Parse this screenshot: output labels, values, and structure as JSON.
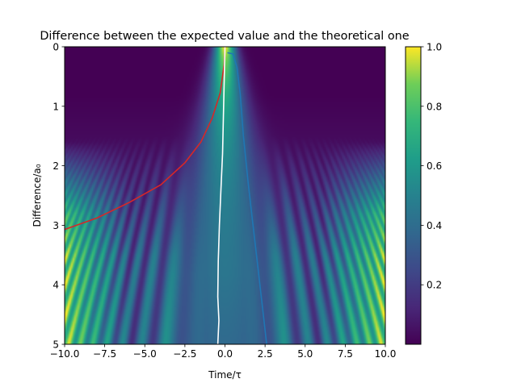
{
  "chart_data": {
    "type": "heatmap",
    "title": "Difference between the expected value and the theoretical one",
    "xlabel": "Time/τ",
    "ylabel": "Difference/a₀",
    "xlim": [
      -10,
      10
    ],
    "ylim": [
      5,
      0
    ],
    "xticks": [
      "−10.0",
      "−7.5",
      "−5.0",
      "−2.5",
      "0.0",
      "2.5",
      "5.0",
      "7.5",
      "10.0"
    ],
    "xtick_values": [
      -10,
      -7.5,
      -5,
      -2.5,
      0,
      2.5,
      5,
      7.5,
      10
    ],
    "yticks": [
      "0",
      "1",
      "2",
      "3",
      "4",
      "5"
    ],
    "ytick_values": [
      0,
      1,
      2,
      3,
      4,
      5
    ],
    "colormap": "viridis",
    "colorbar": {
      "range": [
        0,
        1
      ],
      "ticks": [
        "0.2",
        "0.4",
        "0.6",
        "0.8",
        "1.0"
      ],
      "tick_values": [
        0.2,
        0.4,
        0.6,
        0.8,
        1.0
      ]
    },
    "grid": false,
    "curves": [
      {
        "color": "#d62728",
        "points": [
          [
            -10.0,
            3.07
          ],
          [
            -8.0,
            2.88
          ],
          [
            -6.0,
            2.62
          ],
          [
            -4.0,
            2.32
          ],
          [
            -2.5,
            1.95
          ],
          [
            -1.5,
            1.6
          ],
          [
            -0.8,
            1.2
          ],
          [
            -0.3,
            0.78
          ],
          [
            -0.05,
            0.3
          ],
          [
            0.0,
            0.0
          ]
        ]
      },
      {
        "color": "#ffffff",
        "points": [
          [
            0.0,
            0.0
          ],
          [
            -0.05,
            0.6
          ],
          [
            -0.1,
            1.2
          ],
          [
            -0.15,
            1.8
          ],
          [
            -0.25,
            2.4
          ],
          [
            -0.35,
            3.0
          ],
          [
            -0.42,
            3.6
          ],
          [
            -0.45,
            4.2
          ],
          [
            -0.38,
            4.6
          ],
          [
            -0.45,
            5.0
          ]
        ]
      },
      {
        "color": "#1f77b4",
        "points": [
          [
            0.15,
            0.1
          ],
          [
            0.5,
            0.12
          ],
          [
            0.75,
            0.35
          ],
          [
            0.95,
            0.8
          ],
          [
            1.15,
            1.5
          ],
          [
            1.45,
            2.3
          ],
          [
            1.75,
            3.0
          ],
          [
            2.05,
            3.7
          ],
          [
            2.35,
            4.4
          ],
          [
            2.6,
            5.0
          ]
        ]
      }
    ]
  }
}
